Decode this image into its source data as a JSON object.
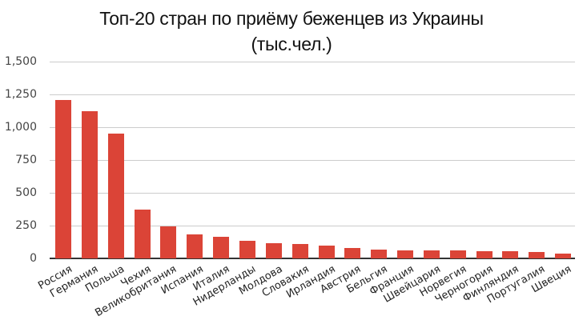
{
  "chart_data": {
    "type": "bar",
    "title": "Топ-20 стран по приёму беженцев из Украины",
    "subtitle": "(тыс.чел.)",
    "xlabel": "",
    "ylabel": "",
    "ylim": [
      0,
      1500
    ],
    "yticks": [
      "0",
      "250",
      "500",
      "750",
      "1,000",
      "1,250",
      "1,500"
    ],
    "grid": true,
    "legend": "none",
    "color": "#db4437",
    "categories": [
      "Россия",
      "Германия",
      "Польша",
      "Чехия",
      "Великобритания",
      "Испания",
      "Италия",
      "Нидерланды",
      "Молдова",
      "Словакия",
      "Ирландия",
      "Австрия",
      "Бельгия",
      "Франция",
      "Швейцария",
      "Норвегия",
      "Черногория",
      "Финляндия",
      "Португалия",
      "Швеция"
    ],
    "values": [
      1207,
      1122,
      951,
      372,
      245,
      183,
      165,
      134,
      116,
      110,
      98,
      80,
      67,
      61,
      61,
      61,
      55,
      55,
      49,
      37
    ]
  }
}
